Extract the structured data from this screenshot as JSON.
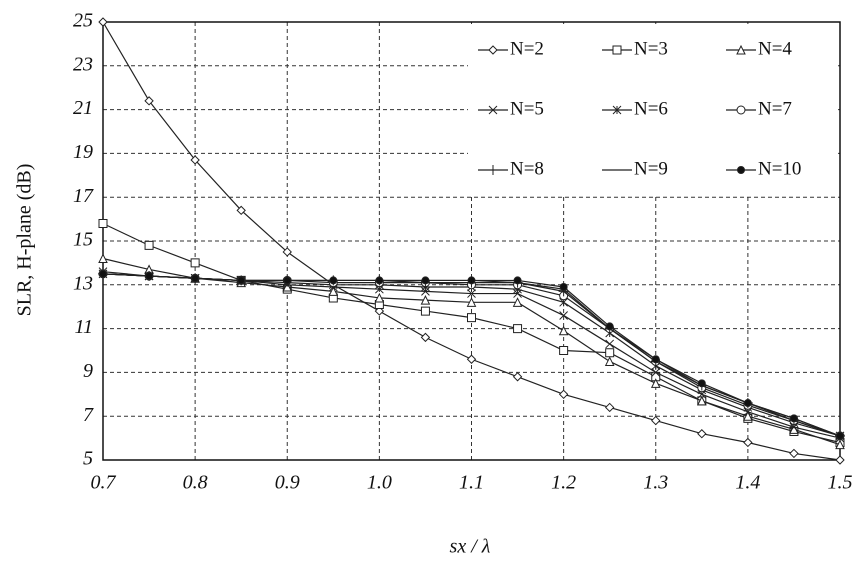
{
  "chart_data": {
    "type": "line",
    "ylabel": "SLR, H-plane (dB)",
    "xlabel": "sx / λ",
    "x": [
      0.7,
      0.75,
      0.8,
      0.85,
      0.9,
      0.95,
      1.0,
      1.05,
      1.1,
      1.15,
      1.2,
      1.25,
      1.3,
      1.35,
      1.4,
      1.45,
      1.5
    ],
    "series": [
      {
        "name": "N=2",
        "color": "#222222",
        "marker": "diamond",
        "values": [
          25,
          21.4,
          18.7,
          16.4,
          14.5,
          13.0,
          11.8,
          10.6,
          9.6,
          8.8,
          8.0,
          7.4,
          6.8,
          6.2,
          5.8,
          5.3,
          5.0
        ]
      },
      {
        "name": "N=3",
        "color": "#222222",
        "marker": "square",
        "values": [
          15.8,
          14.8,
          14.0,
          13.2,
          12.8,
          12.4,
          12.1,
          11.8,
          11.5,
          11.0,
          10.0,
          9.9,
          8.8,
          7.7,
          6.9,
          6.3,
          5.8
        ]
      },
      {
        "name": "N=4",
        "color": "#222222",
        "marker": "triangle",
        "values": [
          14.2,
          13.7,
          13.3,
          13.1,
          12.9,
          12.7,
          12.4,
          12.3,
          12.2,
          12.2,
          10.9,
          9.5,
          8.5,
          7.7,
          7.0,
          6.4,
          5.7
        ]
      },
      {
        "name": "N=5",
        "color": "#222222",
        "marker": "x",
        "values": [
          13.6,
          13.4,
          13.3,
          13.2,
          13.0,
          12.9,
          12.8,
          12.7,
          12.6,
          12.6,
          11.6,
          10.3,
          9.0,
          8.0,
          7.2,
          6.5,
          6.0
        ]
      },
      {
        "name": "N=6",
        "color": "#222222",
        "marker": "asterisk",
        "values": [
          13.5,
          13.4,
          13.3,
          13.2,
          13.1,
          13.0,
          13.0,
          12.9,
          12.9,
          12.8,
          12.2,
          10.8,
          9.3,
          8.2,
          7.4,
          6.7,
          6.1
        ]
      },
      {
        "name": "N=7",
        "color": "#222222",
        "marker": "circle",
        "values": [
          13.5,
          13.4,
          13.3,
          13.2,
          13.2,
          13.1,
          13.1,
          13.1,
          13.0,
          13.0,
          12.5,
          11.0,
          9.5,
          8.3,
          7.5,
          6.8,
          6.1
        ]
      },
      {
        "name": "N=8",
        "color": "#222222",
        "marker": "plus",
        "values": [
          13.5,
          13.4,
          13.3,
          13.2,
          13.2,
          13.2,
          13.2,
          13.1,
          13.1,
          13.1,
          12.7,
          11.0,
          9.5,
          8.4,
          7.6,
          6.8,
          6.1
        ]
      },
      {
        "name": "N=9",
        "color": "#222222",
        "marker": "dash",
        "values": [
          13.5,
          13.4,
          13.3,
          13.2,
          13.2,
          13.2,
          13.2,
          13.2,
          13.2,
          13.1,
          12.8,
          11.0,
          9.6,
          8.4,
          7.6,
          6.9,
          6.1
        ]
      },
      {
        "name": "N=10",
        "color": "#222222",
        "marker": "dot",
        "values": [
          13.5,
          13.4,
          13.3,
          13.2,
          13.2,
          13.2,
          13.2,
          13.2,
          13.2,
          13.2,
          12.9,
          11.1,
          9.6,
          8.5,
          7.6,
          6.9,
          6.1
        ]
      }
    ],
    "xlim": [
      0.7,
      1.5
    ],
    "xticks": [
      0.7,
      0.8,
      0.9,
      {
        "value": 1,
        "label": "1.0"
      },
      1.1,
      1.2,
      1.3,
      1.4,
      1.5
    ],
    "ylim": [
      5,
      25
    ],
    "yticks": [
      5,
      7,
      9,
      11,
      13,
      15,
      17,
      19,
      21,
      23,
      25
    ],
    "grid": true,
    "legend": "top-right"
  }
}
